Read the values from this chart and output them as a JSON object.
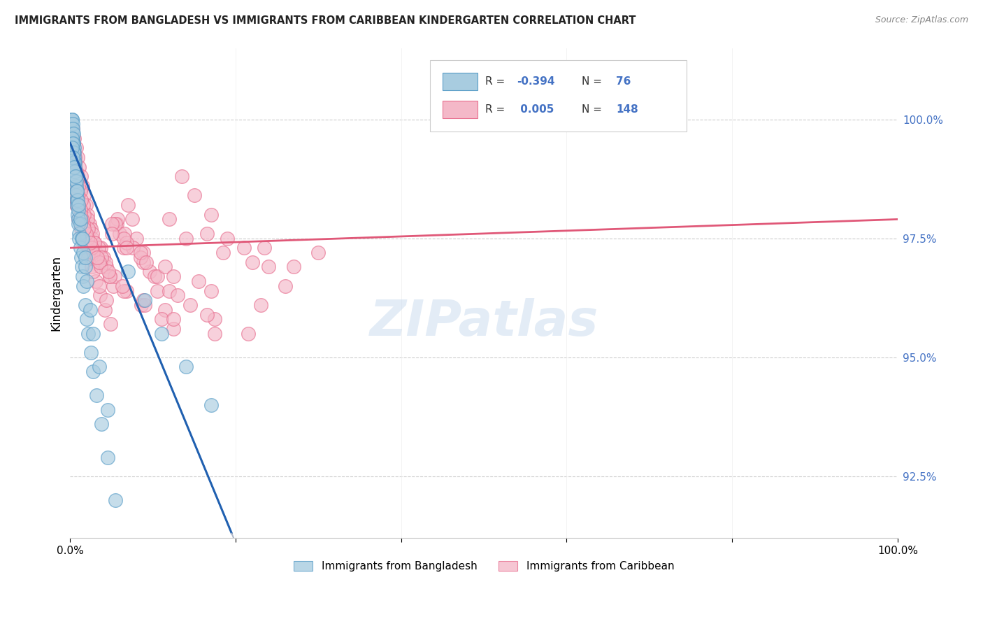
{
  "title": "IMMIGRANTS FROM BANGLADESH VS IMMIGRANTS FROM CARIBBEAN KINDERGARTEN CORRELATION CHART",
  "source": "Source: ZipAtlas.com",
  "ylabel": "Kindergarten",
  "ytick_labels": [
    "92.5%",
    "95.0%",
    "97.5%",
    "100.0%"
  ],
  "ytick_values": [
    92.5,
    95.0,
    97.5,
    100.0
  ],
  "xlim": [
    0.0,
    100.0
  ],
  "ylim": [
    91.2,
    101.5
  ],
  "watermark": "ZIPatlas",
  "bangladesh_color": "#a8cce0",
  "caribbean_color": "#f4b8c8",
  "bangladesh_edge": "#5a9ec8",
  "caribbean_edge": "#e87090",
  "trend_blue_color": "#2060b0",
  "trend_pink_color": "#e05878",
  "trend_gray_color": "#b0b8c8",
  "trend_bang_x0": 0.0,
  "trend_bang_y0": 99.5,
  "trend_bang_slope": -0.42,
  "trend_bang_solid_end": 19.5,
  "trend_bang_dash_end": 60.0,
  "trend_carib_x0": 0.0,
  "trend_carib_y0": 97.3,
  "trend_carib_slope": 0.006,
  "bangladesh_x": [
    0.15,
    0.18,
    0.2,
    0.22,
    0.25,
    0.28,
    0.3,
    0.32,
    0.35,
    0.38,
    0.4,
    0.42,
    0.45,
    0.48,
    0.5,
    0.52,
    0.55,
    0.58,
    0.6,
    0.65,
    0.7,
    0.75,
    0.8,
    0.85,
    0.9,
    0.95,
    1.0,
    1.05,
    1.1,
    1.2,
    1.3,
    1.4,
    1.5,
    1.6,
    1.8,
    2.0,
    2.2,
    2.5,
    2.8,
    3.2,
    3.8,
    4.5,
    5.5,
    7.0,
    9.0,
    11.0,
    14.0,
    17.0,
    0.2,
    0.3,
    0.4,
    0.5,
    0.6,
    0.7,
    0.8,
    0.9,
    1.0,
    1.2,
    1.4,
    1.6,
    1.8,
    2.0,
    2.4,
    2.8,
    3.5,
    4.5,
    0.25,
    0.35,
    0.5,
    0.65,
    0.8,
    1.0,
    1.2,
    1.5,
    1.8
  ],
  "bangladesh_y": [
    100.0,
    99.9,
    100.0,
    99.8,
    100.0,
    99.7,
    99.9,
    99.8,
    99.6,
    99.7,
    99.5,
    99.5,
    99.4,
    99.3,
    99.2,
    99.1,
    99.0,
    98.9,
    98.8,
    98.7,
    98.6,
    98.4,
    98.3,
    98.2,
    98.0,
    97.9,
    97.8,
    97.6,
    97.5,
    97.3,
    97.1,
    96.9,
    96.7,
    96.5,
    96.1,
    95.8,
    95.5,
    95.1,
    94.7,
    94.2,
    93.6,
    92.9,
    92.0,
    96.8,
    96.2,
    95.5,
    94.8,
    94.0,
    99.6,
    99.5,
    99.3,
    99.1,
    98.9,
    98.7,
    98.5,
    98.3,
    98.1,
    97.8,
    97.5,
    97.2,
    96.9,
    96.6,
    96.0,
    95.5,
    94.8,
    93.9,
    99.4,
    99.2,
    99.0,
    98.8,
    98.5,
    98.2,
    97.9,
    97.5,
    97.1
  ],
  "caribbean_x": [
    0.3,
    0.5,
    0.7,
    0.9,
    1.1,
    1.3,
    1.5,
    1.7,
    1.9,
    2.1,
    2.3,
    2.5,
    2.7,
    2.9,
    3.1,
    3.4,
    3.7,
    4.0,
    4.4,
    4.8,
    5.2,
    5.6,
    6.0,
    6.5,
    7.0,
    7.5,
    8.0,
    8.8,
    9.6,
    10.5,
    11.5,
    12.5,
    13.5,
    15.0,
    17.0,
    19.0,
    22.0,
    26.0,
    30.0,
    0.4,
    0.6,
    0.8,
    1.0,
    1.2,
    1.5,
    1.8,
    2.2,
    2.6,
    3.1,
    3.6,
    4.2,
    4.9,
    5.7,
    6.6,
    7.6,
    8.8,
    10.2,
    12.0,
    14.5,
    17.5,
    21.5,
    0.5,
    0.7,
    1.0,
    1.3,
    1.7,
    2.2,
    2.8,
    3.5,
    4.4,
    5.5,
    6.8,
    8.5,
    10.5,
    13.0,
    16.5,
    21.0,
    27.0,
    0.6,
    0.9,
    1.2,
    1.6,
    2.1,
    2.7,
    3.4,
    4.3,
    5.4,
    6.8,
    8.6,
    11.0,
    14.0,
    18.5,
    24.0,
    0.35,
    0.55,
    0.75,
    1.0,
    1.3,
    1.7,
    2.2,
    2.9,
    3.8,
    5.0,
    6.5,
    8.5,
    11.5,
    15.5,
    0.4,
    0.65,
    0.9,
    1.2,
    1.6,
    2.1,
    2.8,
    3.7,
    5.0,
    6.8,
    9.2,
    12.5,
    17.0,
    23.0,
    0.45,
    0.7,
    1.0,
    1.4,
    1.9,
    2.6,
    3.5,
    4.8,
    6.5,
    9.0,
    12.5,
    17.5,
    0.8,
    1.2,
    1.7,
    2.4,
    3.3,
    4.6,
    6.3,
    8.8,
    12.0,
    16.5,
    23.5
  ],
  "caribbean_y": [
    99.8,
    99.6,
    99.4,
    99.2,
    99.0,
    98.8,
    98.6,
    98.4,
    98.2,
    98.0,
    97.8,
    97.7,
    97.5,
    97.4,
    97.2,
    97.0,
    97.3,
    97.1,
    96.9,
    96.7,
    96.5,
    97.8,
    97.6,
    97.3,
    98.2,
    97.9,
    97.5,
    97.2,
    96.8,
    96.4,
    96.0,
    95.6,
    98.8,
    98.4,
    98.0,
    97.5,
    97.0,
    96.5,
    97.2,
    99.3,
    99.0,
    98.7,
    98.4,
    98.1,
    97.8,
    97.5,
    97.2,
    96.9,
    96.6,
    96.3,
    96.0,
    95.7,
    97.9,
    97.6,
    97.3,
    97.0,
    96.7,
    96.4,
    96.1,
    95.8,
    95.5,
    98.5,
    98.2,
    97.9,
    97.7,
    97.4,
    97.1,
    96.8,
    96.5,
    96.2,
    97.8,
    97.4,
    97.1,
    96.7,
    96.3,
    95.9,
    97.3,
    96.9,
    99.1,
    98.8,
    98.5,
    98.2,
    97.9,
    97.6,
    97.3,
    97.0,
    96.7,
    96.4,
    96.1,
    95.8,
    97.5,
    97.2,
    96.9,
    99.5,
    99.2,
    98.9,
    98.6,
    98.3,
    98.0,
    97.7,
    97.4,
    97.1,
    97.8,
    97.5,
    97.2,
    96.9,
    96.6,
    99.0,
    98.7,
    98.4,
    98.1,
    97.8,
    97.5,
    97.2,
    96.9,
    97.6,
    97.3,
    97.0,
    96.7,
    96.4,
    96.1,
    98.8,
    98.5,
    98.2,
    97.9,
    97.6,
    97.3,
    97.0,
    96.7,
    96.4,
    96.1,
    95.8,
    95.5,
    98.3,
    98.0,
    97.7,
    97.4,
    97.1,
    96.8,
    96.5,
    96.2,
    97.9,
    97.6,
    97.3
  ]
}
